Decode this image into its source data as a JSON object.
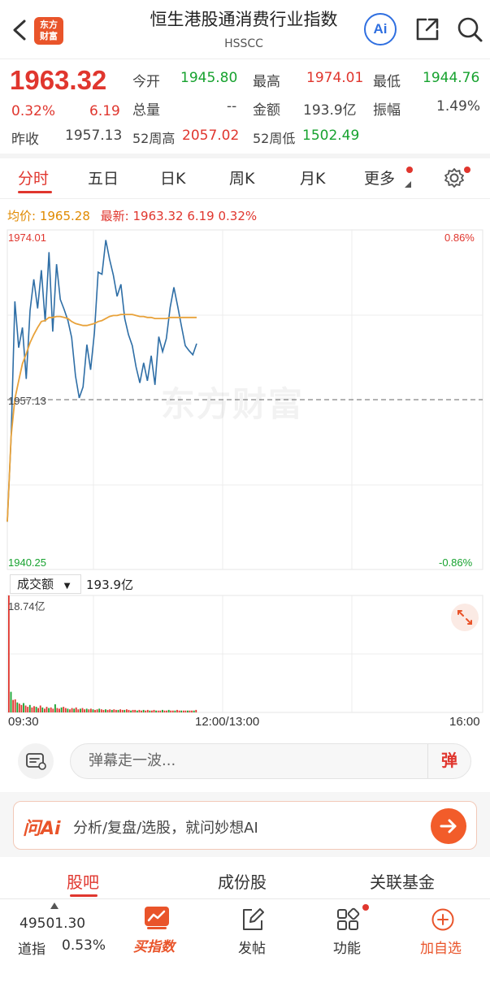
{
  "header": {
    "logo_text": "东方财富",
    "title": "恒生港股通消费行业指数",
    "code": "HSSCC",
    "ai_label": "Ai"
  },
  "quote": {
    "price": "1963.32",
    "change_pct": "0.32%",
    "change": "6.19",
    "open_label": "今开",
    "open": "1945.80",
    "high_label": "最高",
    "high": "1974.01",
    "low_label": "最低",
    "low": "1944.76",
    "volume_label": "总量",
    "volume": "--",
    "amount_label": "金额",
    "amount": "193.9亿",
    "amplitude_label": "振幅",
    "amplitude": "1.49%",
    "prev_close_label": "昨收",
    "prev_close": "1957.13",
    "w52_high_label": "52周高",
    "w52_high": "2057.02",
    "w52_low_label": "52周低",
    "w52_low": "1502.49"
  },
  "tabs": [
    "分时",
    "五日",
    "日K",
    "周K",
    "月K",
    "更多"
  ],
  "avg_bar": {
    "avg_label": "均价:",
    "avg_value": "1965.28",
    "latest_label": "最新:",
    "latest_value": "1963.32",
    "change": "6.19",
    "change_pct": "0.32%"
  },
  "chart_data": {
    "type": "line",
    "y_max_label": "1974.01",
    "y_min_label": "1940.25",
    "y_ref_label": "1957.13",
    "pct_max_label": "0.86%",
    "pct_min_label": "-0.86%",
    "ylim": [
      1940.25,
      1974.01
    ],
    "reference": 1957.13,
    "watermark": "东方财富",
    "x_labels": [
      "09:30",
      "12:00/13:00",
      "16:00"
    ],
    "series": [
      {
        "values": [
          1945.0,
          1953.4,
          1966.9,
          1962.3,
          1964.3,
          1959.2,
          1966.0,
          1969.1,
          1966.2,
          1970.0,
          1964.9,
          1971.8,
          1963.9,
          1970.6,
          1967.1,
          1966.1,
          1965.0,
          1963.3,
          1959.5,
          1957.3,
          1958.4,
          1962.6,
          1960.1,
          1963.8,
          1969.8,
          1969.6,
          1973.0,
          1971.1,
          1969.5,
          1967.4,
          1968.6,
          1965.2,
          1963.6,
          1962.5,
          1960.4,
          1958.8,
          1960.8,
          1959.0,
          1961.5,
          1958.6,
          1963.4,
          1961.9,
          1963.2,
          1966.3,
          1968.3,
          1966.4,
          1964.4,
          1962.5,
          1962.0,
          1961.6,
          1962.7
        ]
      },
      {
        "values": [
          1945.0,
          1953.5,
          1957.2,
          1959.0,
          1960.7,
          1961.7,
          1962.8,
          1963.6,
          1964.3,
          1964.9,
          1965.0,
          1965.3,
          1965.3,
          1965.4,
          1965.4,
          1965.3,
          1965.2,
          1964.9,
          1964.7,
          1964.6,
          1964.5,
          1964.5,
          1964.6,
          1964.7,
          1964.9,
          1965.0,
          1965.2,
          1965.4,
          1965.5,
          1965.5,
          1965.6,
          1965.6,
          1965.6,
          1965.6,
          1965.5,
          1965.4,
          1965.4,
          1965.3,
          1965.3,
          1965.2,
          1965.2,
          1965.2,
          1965.2,
          1965.3,
          1965.3,
          1965.3,
          1965.3,
          1965.3,
          1965.3,
          1965.3,
          1965.3
        ]
      }
    ],
    "volume": {
      "select_label": "成交额",
      "total": "193.9亿",
      "max_label": "18.74亿",
      "bars": [
        18.74,
        3.3,
        2.0,
        2.1,
        1.6,
        1.4,
        1.2,
        1.5,
        1.1,
        0.9,
        1.2,
        0.8,
        1.0,
        0.9,
        0.7,
        1.1,
        0.8,
        0.6,
        0.9,
        0.7,
        0.8,
        0.6,
        1.3,
        0.7,
        0.6,
        0.8,
        0.9,
        0.7,
        0.6,
        0.5,
        0.7,
        0.6,
        0.8,
        0.5,
        0.6,
        0.7,
        0.5,
        0.6,
        0.5,
        0.6,
        0.5,
        0.4,
        0.5,
        0.6,
        0.5,
        0.4,
        0.5,
        0.4,
        0.5,
        0.4,
        0.5,
        0.4,
        0.4,
        0.5,
        0.4,
        0.4,
        0.5,
        0.4,
        0.3,
        0.4,
        0.4,
        0.3,
        0.4,
        0.3,
        0.4,
        0.3,
        0.4,
        0.3,
        0.3,
        0.4,
        0.3,
        0.3,
        0.3,
        0.4,
        0.3,
        0.3,
        0.4,
        0.3,
        0.3,
        0.3,
        0.4,
        0.3,
        0.3,
        0.3,
        0.3,
        0.3,
        0.3,
        0.3,
        0.3,
        0.4
      ]
    }
  },
  "danmaku": {
    "placeholder": "弹幕走一波...",
    "send_label": "弹"
  },
  "ask_ai": {
    "logo": "问Ai",
    "text": "分析/复盘/选股，就问妙想AI"
  },
  "subtabs": [
    "股吧",
    "成份股",
    "关联基金"
  ],
  "bottom_nav": {
    "index_value": "49501.30",
    "index_name": "道指",
    "index_change": "0.53%",
    "buy_index": "买指数",
    "post": "发帖",
    "function": "功能",
    "add_watch": "加自选"
  },
  "colors": {
    "up": "#e0362e",
    "down": "#17a22f",
    "price_line": "#2e6ea6",
    "avg_line": "#e8a23a",
    "brand": "#e9542a"
  }
}
